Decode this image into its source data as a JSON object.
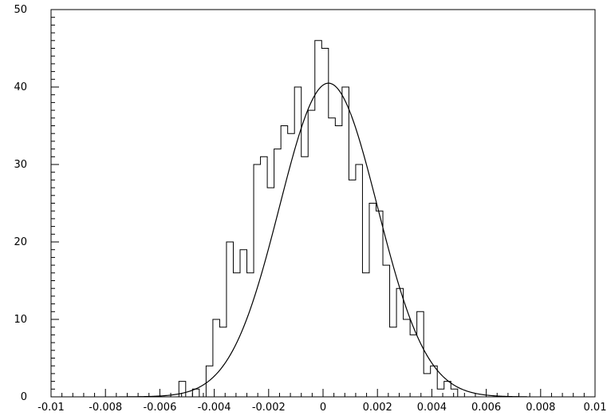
{
  "chart_data": {
    "type": "histogram",
    "title": "",
    "xlabel": "",
    "ylabel": "",
    "xlim": [
      -0.01,
      0.01
    ],
    "ylim": [
      0,
      50
    ],
    "grid": false,
    "legend": "none",
    "x_ticks": [
      -0.01,
      -0.008,
      -0.006,
      -0.004,
      -0.002,
      0,
      0.002,
      0.004,
      0.006,
      0.008,
      0.01
    ],
    "x_tick_labels": [
      "-0.01",
      "-0.008",
      "-0.006",
      "-0.004",
      "-0.002",
      "0",
      "0.002",
      "0.004",
      "0.006",
      "0.008",
      "0.01"
    ],
    "y_ticks": [
      0,
      10,
      20,
      30,
      40,
      50
    ],
    "y_tick_labels": [
      "0",
      "10",
      "20",
      "30",
      "40",
      "50"
    ],
    "histogram": {
      "bin_start": -0.0053,
      "bin_width": 0.00025,
      "counts": [
        2,
        0,
        1,
        0,
        4,
        10,
        9,
        20,
        16,
        19,
        16,
        30,
        31,
        27,
        32,
        35,
        34,
        40,
        31,
        37,
        46,
        45,
        36,
        35,
        40,
        28,
        30,
        16,
        25,
        24,
        17,
        9,
        14,
        10,
        8,
        11,
        3,
        4,
        1,
        2,
        1
      ]
    },
    "fit": {
      "type": "gaussian",
      "amplitude": 40.5,
      "mean": 0.0002,
      "sigma": 0.0018
    },
    "colors": {
      "line": "#000000",
      "background": "#ffffff"
    }
  }
}
